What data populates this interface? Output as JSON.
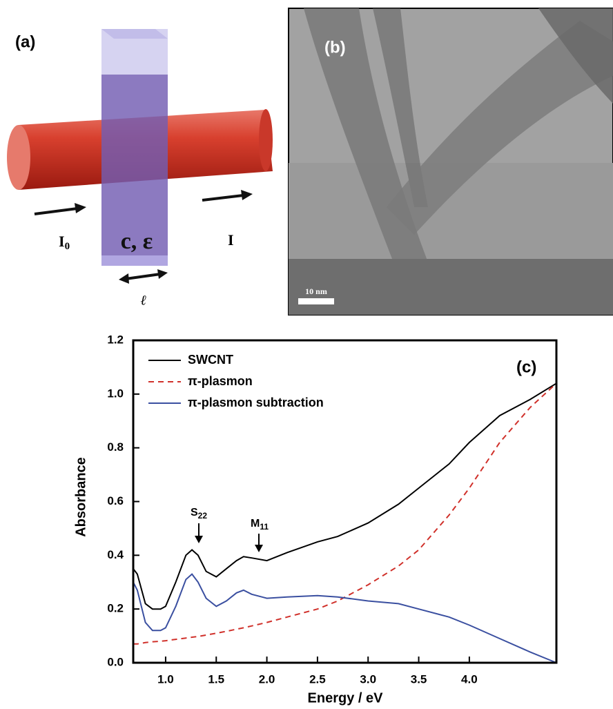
{
  "panel_a": {
    "label": "(a)",
    "incident": {
      "text": "I",
      "subscript": "0"
    },
    "transmitted": "I",
    "sample": "c, ε",
    "path_length": "ℓ"
  },
  "panel_b": {
    "label": "(b)",
    "scale_bar": "10 nm"
  },
  "chart_data": {
    "type": "line",
    "panel_label": "(c)",
    "x_label": "Energy / eV",
    "y_label": "Absorbance",
    "x": [
      0.68,
      0.72,
      0.8,
      0.87,
      0.95,
      1.0,
      1.1,
      1.2,
      1.26,
      1.32,
      1.4,
      1.5,
      1.6,
      1.7,
      1.77,
      1.85,
      2.0,
      2.2,
      2.5,
      2.7,
      3.0,
      3.3,
      3.5,
      3.8,
      4.0,
      4.3,
      4.6,
      4.86
    ],
    "series": [
      {
        "name": "SWCNT",
        "color": "#000000",
        "dashed": false,
        "values": [
          0.35,
          0.33,
          0.22,
          0.2,
          0.2,
          0.21,
          0.3,
          0.4,
          0.42,
          0.4,
          0.34,
          0.32,
          0.35,
          0.38,
          0.395,
          0.39,
          0.38,
          0.41,
          0.45,
          0.47,
          0.52,
          0.59,
          0.65,
          0.74,
          0.82,
          0.92,
          0.98,
          1.04
        ]
      },
      {
        "name": "π-plasmon",
        "color": "#d0302a",
        "dashed": true,
        "values": [
          0.07,
          0.07,
          0.075,
          0.078,
          0.08,
          0.082,
          0.087,
          0.092,
          0.095,
          0.098,
          0.103,
          0.11,
          0.117,
          0.125,
          0.13,
          0.137,
          0.15,
          0.17,
          0.2,
          0.23,
          0.29,
          0.36,
          0.42,
          0.55,
          0.65,
          0.82,
          0.95,
          1.04
        ]
      },
      {
        "name": "π-plasmon subtraction",
        "color": "#3a4fa0",
        "dashed": false,
        "values": [
          0.3,
          0.27,
          0.15,
          0.12,
          0.12,
          0.13,
          0.21,
          0.31,
          0.33,
          0.3,
          0.24,
          0.21,
          0.23,
          0.26,
          0.27,
          0.255,
          0.24,
          0.245,
          0.25,
          0.245,
          0.23,
          0.22,
          0.2,
          0.17,
          0.14,
          0.09,
          0.04,
          0.0
        ]
      }
    ],
    "annotations": [
      {
        "text": "S",
        "subscript": "22"
      },
      {
        "text": "M",
        "subscript": "11"
      }
    ],
    "xlim": [
      0.68,
      4.86
    ],
    "ylim": [
      0,
      1.2
    ],
    "xticks": [
      {
        "value": 1,
        "label": "1.0"
      },
      1.5,
      {
        "value": 2,
        "label": "2.0"
      },
      2.5,
      {
        "value": 3,
        "label": "3.0"
      },
      3.5,
      {
        "value": 4,
        "label": "4.0"
      }
    ],
    "yticks": [
      {
        "value": 0,
        "label": "0.0"
      },
      0.2,
      0.4,
      0.6,
      0.8,
      {
        "value": 1,
        "label": "1.0"
      },
      1.2
    ],
    "legend": "upper left",
    "grid": false
  }
}
